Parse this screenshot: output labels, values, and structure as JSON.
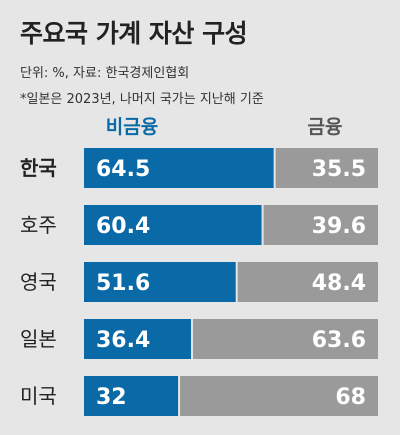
{
  "title": "주요국 가계 자산 구성",
  "subtitle_unit": "단위: %, 자료: 한국경제인협회",
  "footnote": "*일본은 2023년, 나머지 국가는 지난해 기준",
  "colors": {
    "non_financial": "#0a6aa8",
    "financial": "#9a9a9a",
    "background": "#e6e6e6"
  },
  "chart_data": {
    "type": "bar",
    "orientation": "horizontal-stacked-100",
    "categories": [
      "한국",
      "호주",
      "영국",
      "일본",
      "미국"
    ],
    "highlight_category": "한국",
    "series": [
      {
        "name": "비금융",
        "values": [
          64.5,
          60.4,
          51.6,
          36.4,
          32
        ]
      },
      {
        "name": "금융",
        "values": [
          35.5,
          39.6,
          48.4,
          63.6,
          68
        ]
      }
    ],
    "xlim": [
      0,
      100
    ],
    "legend": "top",
    "grid": false
  }
}
